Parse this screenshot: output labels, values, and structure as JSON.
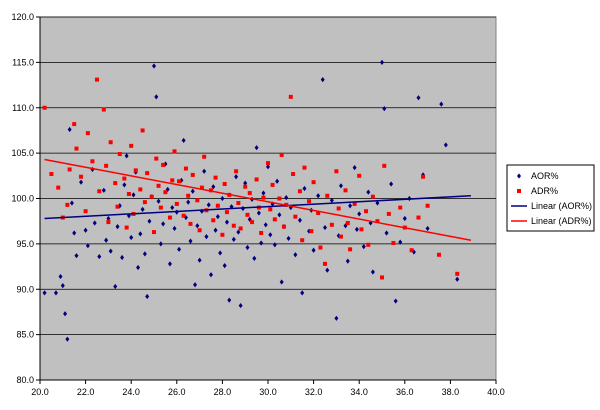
{
  "chart_data": {
    "type": "scatter",
    "title": "",
    "xlabel": "",
    "ylabel": "",
    "xlim": [
      20.0,
      40.0
    ],
    "ylim": [
      80.0,
      120.0
    ],
    "x_ticks": [
      "20.0",
      "22.0",
      "24.0",
      "26.0",
      "28.0",
      "30.0",
      "32.0",
      "34.0",
      "36.0",
      "38.0",
      "40.0"
    ],
    "y_ticks": [
      "80.0",
      "85.0",
      "90.0",
      "95.0",
      "100.0",
      "105.0",
      "110.0",
      "115.0",
      "120.0"
    ],
    "grid": "horizontal",
    "plot_background": "#c0c0c0",
    "legend_position": "right",
    "series": [
      {
        "name": "AOR%",
        "marker": "diamond",
        "color": "#000080",
        "points": [
          [
            20.2,
            89.6
          ],
          [
            20.7,
            89.6
          ],
          [
            20.9,
            91.4
          ],
          [
            21.0,
            90.4
          ],
          [
            21.1,
            87.3
          ],
          [
            21.2,
            84.5
          ],
          [
            21.3,
            107.6
          ],
          [
            21.4,
            99.5
          ],
          [
            21.5,
            96.2
          ],
          [
            21.6,
            93.7
          ],
          [
            21.8,
            101.8
          ],
          [
            22.0,
            96.5
          ],
          [
            22.1,
            94.8
          ],
          [
            22.3,
            103.2
          ],
          [
            22.4,
            97.3
          ],
          [
            22.6,
            93.6
          ],
          [
            22.8,
            100.9
          ],
          [
            22.9,
            95.4
          ],
          [
            23.0,
            97.8
          ],
          [
            23.1,
            94.2
          ],
          [
            23.3,
            90.3
          ],
          [
            23.4,
            96.9
          ],
          [
            23.5,
            99.2
          ],
          [
            23.6,
            93.5
          ],
          [
            23.7,
            101.5
          ],
          [
            23.8,
            104.7
          ],
          [
            23.9,
            98.1
          ],
          [
            24.0,
            95.7
          ],
          [
            24.1,
            100.4
          ],
          [
            24.2,
            102.9
          ],
          [
            24.3,
            92.4
          ],
          [
            24.4,
            96.1
          ],
          [
            24.5,
            98.8
          ],
          [
            24.6,
            93.9
          ],
          [
            24.7,
            89.2
          ],
          [
            24.8,
            97.5
          ],
          [
            24.9,
            100.2
          ],
          [
            25.0,
            114.6
          ],
          [
            25.1,
            111.2
          ],
          [
            25.2,
            99.7
          ],
          [
            25.3,
            95.0
          ],
          [
            25.4,
            97.2
          ],
          [
            25.5,
            103.8
          ],
          [
            25.6,
            101.0
          ],
          [
            25.7,
            92.8
          ],
          [
            25.8,
            99.0
          ],
          [
            25.9,
            96.7
          ],
          [
            26.0,
            98.5
          ],
          [
            26.1,
            94.4
          ],
          [
            26.2,
            102.0
          ],
          [
            26.3,
            106.4
          ],
          [
            26.4,
            97.9
          ],
          [
            26.5,
            99.6
          ],
          [
            26.6,
            95.3
          ],
          [
            26.7,
            100.8
          ],
          [
            26.8,
            90.5
          ],
          [
            26.9,
            97.0
          ],
          [
            27.0,
            93.2
          ],
          [
            27.1,
            98.6
          ],
          [
            27.2,
            103.0
          ],
          [
            27.3,
            95.8
          ],
          [
            27.4,
            99.3
          ],
          [
            27.5,
            91.6
          ],
          [
            27.6,
            101.3
          ],
          [
            27.7,
            96.5
          ],
          [
            27.8,
            98.0
          ],
          [
            27.9,
            94.0
          ],
          [
            28.0,
            100.0
          ],
          [
            28.1,
            92.6
          ],
          [
            28.2,
            97.4
          ],
          [
            28.3,
            88.8
          ],
          [
            28.4,
            99.1
          ],
          [
            28.5,
            95.5
          ],
          [
            28.6,
            102.4
          ],
          [
            28.7,
            96.3
          ],
          [
            28.8,
            88.2
          ],
          [
            28.9,
            98.9
          ],
          [
            29.0,
            101.7
          ],
          [
            29.1,
            94.6
          ],
          [
            29.2,
            97.7
          ],
          [
            29.3,
            99.9
          ],
          [
            29.4,
            93.4
          ],
          [
            29.5,
            105.6
          ],
          [
            29.6,
            98.4
          ],
          [
            29.7,
            95.1
          ],
          [
            29.8,
            100.6
          ],
          [
            29.9,
            97.1
          ],
          [
            30.0,
            103.5
          ],
          [
            30.1,
            96.0
          ],
          [
            30.2,
            99.4
          ],
          [
            30.3,
            94.9
          ],
          [
            30.4,
            101.9
          ],
          [
            30.5,
            98.2
          ],
          [
            30.6,
            90.8
          ],
          [
            30.7,
            96.9
          ],
          [
            30.8,
            100.1
          ],
          [
            30.9,
            95.6
          ],
          [
            31.0,
            99.0
          ],
          [
            31.2,
            93.8
          ],
          [
            31.4,
            97.6
          ],
          [
            31.5,
            89.6
          ],
          [
            31.6,
            101.1
          ],
          [
            31.8,
            96.4
          ],
          [
            31.9,
            98.7
          ],
          [
            32.0,
            94.3
          ],
          [
            32.2,
            100.3
          ],
          [
            32.4,
            113.1
          ],
          [
            32.5,
            96.8
          ],
          [
            32.6,
            92.1
          ],
          [
            32.8,
            99.8
          ],
          [
            33.0,
            86.8
          ],
          [
            33.1,
            95.9
          ],
          [
            33.2,
            101.4
          ],
          [
            33.4,
            97.0
          ],
          [
            33.5,
            93.1
          ],
          [
            33.6,
            99.2
          ],
          [
            33.8,
            103.4
          ],
          [
            33.9,
            96.6
          ],
          [
            34.0,
            98.3
          ],
          [
            34.2,
            94.7
          ],
          [
            34.4,
            100.7
          ],
          [
            34.5,
            97.3
          ],
          [
            34.6,
            91.9
          ],
          [
            34.8,
            99.5
          ],
          [
            35.0,
            115.0
          ],
          [
            35.1,
            109.9
          ],
          [
            35.2,
            96.2
          ],
          [
            35.4,
            101.6
          ],
          [
            35.6,
            88.7
          ],
          [
            35.8,
            95.2
          ],
          [
            36.0,
            97.8
          ],
          [
            36.2,
            100.0
          ],
          [
            36.4,
            94.1
          ],
          [
            36.6,
            111.1
          ],
          [
            36.8,
            102.6
          ],
          [
            37.0,
            96.7
          ],
          [
            37.6,
            110.4
          ],
          [
            37.8,
            105.9
          ],
          [
            38.3,
            91.1
          ]
        ]
      },
      {
        "name": "ADR%",
        "marker": "square",
        "color": "#ff0000",
        "points": [
          [
            20.2,
            110.0
          ],
          [
            20.5,
            102.7
          ],
          [
            20.8,
            101.2
          ],
          [
            21.0,
            97.9
          ],
          [
            21.2,
            99.3
          ],
          [
            21.3,
            103.2
          ],
          [
            21.5,
            108.2
          ],
          [
            21.6,
            105.5
          ],
          [
            21.8,
            102.4
          ],
          [
            22.0,
            98.6
          ],
          [
            22.1,
            107.2
          ],
          [
            22.3,
            104.1
          ],
          [
            22.5,
            113.1
          ],
          [
            22.6,
            100.8
          ],
          [
            22.8,
            109.8
          ],
          [
            22.9,
            103.6
          ],
          [
            23.0,
            97.4
          ],
          [
            23.1,
            106.2
          ],
          [
            23.3,
            101.7
          ],
          [
            23.4,
            99.1
          ],
          [
            23.5,
            104.9
          ],
          [
            23.7,
            102.2
          ],
          [
            23.8,
            96.8
          ],
          [
            23.9,
            100.5
          ],
          [
            24.0,
            105.8
          ],
          [
            24.1,
            98.3
          ],
          [
            24.2,
            103.1
          ],
          [
            24.4,
            101.0
          ],
          [
            24.5,
            107.5
          ],
          [
            24.6,
            99.6
          ],
          [
            24.7,
            102.8
          ],
          [
            24.9,
            100.2
          ],
          [
            25.0,
            96.3
          ],
          [
            25.1,
            104.4
          ],
          [
            25.2,
            101.4
          ],
          [
            25.3,
            99.0
          ],
          [
            25.4,
            103.7
          ],
          [
            25.5,
            100.7
          ],
          [
            25.7,
            97.9
          ],
          [
            25.8,
            102.0
          ],
          [
            25.9,
            105.2
          ],
          [
            26.0,
            99.4
          ],
          [
            26.1,
            101.9
          ],
          [
            26.3,
            98.1
          ],
          [
            26.4,
            103.3
          ],
          [
            26.5,
            100.3
          ],
          [
            26.6,
            97.2
          ],
          [
            26.7,
            102.6
          ],
          [
            26.9,
            99.8
          ],
          [
            27.0,
            96.5
          ],
          [
            27.1,
            101.2
          ],
          [
            27.2,
            104.6
          ],
          [
            27.3,
            98.7
          ],
          [
            27.5,
            100.9
          ],
          [
            27.6,
            97.6
          ],
          [
            27.7,
            102.3
          ],
          [
            27.8,
            99.2
          ],
          [
            28.0,
            96.0
          ],
          [
            28.1,
            101.6
          ],
          [
            28.2,
            98.5
          ],
          [
            28.3,
            100.4
          ],
          [
            28.5,
            97.0
          ],
          [
            28.6,
            103.0
          ],
          [
            28.7,
            99.5
          ],
          [
            28.8,
            96.7
          ],
          [
            29.0,
            101.3
          ],
          [
            29.1,
            98.2
          ],
          [
            29.2,
            100.6
          ],
          [
            29.3,
            97.4
          ],
          [
            29.5,
            102.1
          ],
          [
            29.6,
            99.0
          ],
          [
            29.7,
            96.2
          ],
          [
            29.8,
            100.1
          ],
          [
            30.0,
            103.9
          ],
          [
            30.1,
            98.8
          ],
          [
            30.2,
            101.5
          ],
          [
            30.3,
            97.7
          ],
          [
            30.5,
            100.0
          ],
          [
            30.6,
            104.8
          ],
          [
            30.7,
            96.9
          ],
          [
            30.8,
            99.3
          ],
          [
            31.0,
            111.2
          ],
          [
            31.1,
            102.7
          ],
          [
            31.2,
            98.0
          ],
          [
            31.4,
            100.8
          ],
          [
            31.5,
            95.4
          ],
          [
            31.6,
            103.4
          ],
          [
            31.8,
            99.7
          ],
          [
            31.9,
            96.4
          ],
          [
            32.0,
            101.8
          ],
          [
            32.2,
            98.4
          ],
          [
            32.3,
            94.6
          ],
          [
            32.5,
            92.8
          ],
          [
            32.6,
            100.3
          ],
          [
            32.8,
            97.1
          ],
          [
            33.0,
            103.0
          ],
          [
            33.1,
            98.9
          ],
          [
            33.2,
            95.8
          ],
          [
            33.4,
            100.9
          ],
          [
            33.5,
            97.3
          ],
          [
            33.6,
            94.4
          ],
          [
            33.8,
            99.4
          ],
          [
            34.0,
            102.5
          ],
          [
            34.1,
            96.6
          ],
          [
            34.3,
            98.6
          ],
          [
            34.4,
            94.9
          ],
          [
            34.6,
            100.2
          ],
          [
            34.8,
            97.5
          ],
          [
            35.0,
            91.3
          ],
          [
            35.1,
            103.6
          ],
          [
            35.3,
            98.3
          ],
          [
            35.5,
            95.1
          ],
          [
            35.8,
            99.0
          ],
          [
            36.0,
            96.8
          ],
          [
            36.3,
            94.3
          ],
          [
            36.6,
            97.9
          ],
          [
            36.8,
            102.4
          ],
          [
            37.0,
            99.2
          ],
          [
            37.5,
            93.8
          ],
          [
            38.3,
            91.7
          ]
        ]
      },
      {
        "name": "Linear (AOR%)",
        "kind": "trendline",
        "color": "#000080",
        "points": [
          [
            20.2,
            97.8
          ],
          [
            38.9,
            100.3
          ]
        ]
      },
      {
        "name": "Linear (ADR%)",
        "kind": "trendline",
        "color": "#ff0000",
        "points": [
          [
            20.2,
            104.3
          ],
          [
            38.9,
            95.4
          ]
        ]
      }
    ]
  }
}
